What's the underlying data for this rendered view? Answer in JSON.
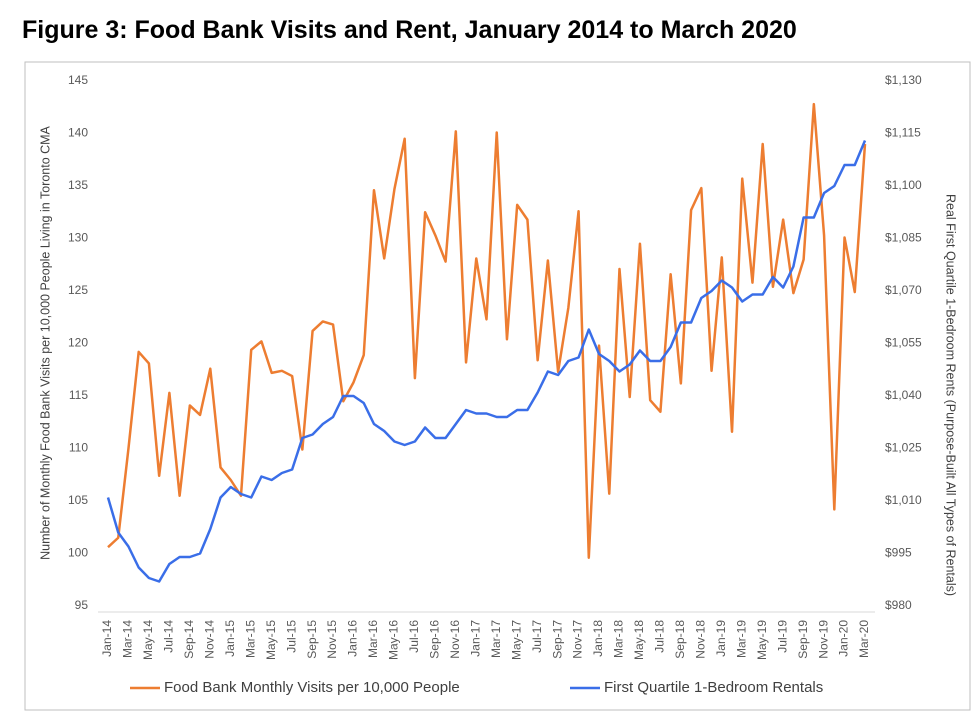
{
  "chart_data": {
    "type": "line",
    "title": "Figure 3: Food Bank Visits and Rent, January 2014 to March 2020",
    "y_label": "Number of Monthly Food Bank Visits per 10,000 People Living in Toronto CMA",
    "y2_label": "Real First Quartile 1-Bedroom Rents (Purpose-Built All Types of Rentals)",
    "categories": [
      "Jan-14",
      null,
      "Mar-14",
      null,
      "May-14",
      null,
      "Jul-14",
      null,
      "Sep-14",
      null,
      "Nov-14",
      null,
      "Jan-15",
      null,
      "Mar-15",
      null,
      "May-15",
      null,
      "Jul-15",
      null,
      "Sep-15",
      null,
      "Nov-15",
      null,
      "Jan-16",
      null,
      "Mar-16",
      null,
      "May-16",
      null,
      "Jul-16",
      null,
      "Sep-16",
      null,
      "Nov-16",
      null,
      "Jan-17",
      null,
      "Mar-17",
      null,
      "May-17",
      null,
      "Jul-17",
      null,
      "Sep-17",
      null,
      "Nov-17",
      null,
      "Jan-18",
      null,
      "Mar-18",
      null,
      "May-18",
      null,
      "Jul-18",
      null,
      "Sep-18",
      null,
      "Nov-18",
      null,
      "Jan-19",
      null,
      "Mar-19",
      null,
      "May-19",
      null,
      "Jul-19",
      null,
      "Sep-19",
      null,
      "Nov-19",
      null,
      "Jan-20",
      null,
      "Mar-20"
    ],
    "series": [
      {
        "name": "Food Bank Monthly Visits per 10,000 People",
        "color": "#ed7d31",
        "axis": "y",
        "values": [
          100.6,
          101.5,
          110,
          119.2,
          118.1,
          107.4,
          115.3,
          105.5,
          114.1,
          113.2,
          117.6,
          108.2,
          107,
          105.5,
          119.4,
          120.2,
          117.2,
          117.4,
          116.9,
          109.9,
          121.2,
          122.1,
          121.8,
          114.5,
          116.3,
          118.9,
          134.6,
          128.1,
          134.7,
          139.5,
          116.7,
          132.5,
          130.3,
          127.8,
          140.2,
          118.2,
          128.1,
          122.3,
          140.1,
          120.4,
          133.2,
          131.8,
          118.4,
          127.9,
          117.3,
          123.4,
          132.6,
          99.6,
          119.8,
          105.7,
          127.1,
          114.9,
          129.5,
          114.6,
          113.5,
          126.6,
          116.2,
          132.7,
          134.8,
          117.4,
          128.2,
          111.6,
          135.7,
          125.8,
          139.0,
          125.4,
          131.8,
          124.8,
          128,
          142.8,
          130.3,
          104.2,
          130.1,
          124.9,
          139
        ]
      },
      {
        "name": "First Quartile 1-Bedroom Rentals",
        "color": "#3a6ee8",
        "axis": "y2",
        "values": [
          1011,
          1001,
          997,
          991,
          988,
          987,
          992,
          994,
          994,
          995,
          1002,
          1011,
          1014,
          1012,
          1011,
          1017,
          1016,
          1018,
          1019,
          1028,
          1029,
          1032,
          1034,
          1040,
          1040,
          1038,
          1032,
          1030,
          1027,
          1026,
          1027,
          1031,
          1028,
          1028,
          1032,
          1036,
          1035,
          1035,
          1034,
          1034,
          1036,
          1036,
          1041,
          1047,
          1046,
          1050,
          1051,
          1059,
          1052,
          1050,
          1047,
          1049,
          1053,
          1050,
          1050,
          1054,
          1061,
          1061,
          1068,
          1070,
          1073,
          1071,
          1067,
          1069,
          1069,
          1074,
          1071,
          1077,
          1091,
          1091,
          1098,
          1100,
          1106,
          1106,
          1113
        ]
      }
    ],
    "ylim": [
      95,
      145
    ],
    "yticks": [
      95,
      100,
      105,
      110,
      115,
      120,
      125,
      130,
      135,
      140,
      145
    ],
    "y2lim": [
      980,
      1130
    ],
    "y2ticks": [
      {
        "value": 980,
        "label": "$980"
      },
      {
        "value": 995,
        "label": "$995"
      },
      {
        "value": 1010,
        "label": "$1,010"
      },
      {
        "value": 1025,
        "label": "$1,025"
      },
      {
        "value": 1040,
        "label": "$1,040"
      },
      {
        "value": 1055,
        "label": "$1,055"
      },
      {
        "value": 1070,
        "label": "$1,070"
      },
      {
        "value": 1085,
        "label": "$1,085"
      },
      {
        "value": 1100,
        "label": "$1,100"
      },
      {
        "value": 1115,
        "label": "$1,115"
      },
      {
        "value": 1130,
        "label": "$1,130"
      }
    ],
    "grid": false,
    "legend": "bottom"
  }
}
